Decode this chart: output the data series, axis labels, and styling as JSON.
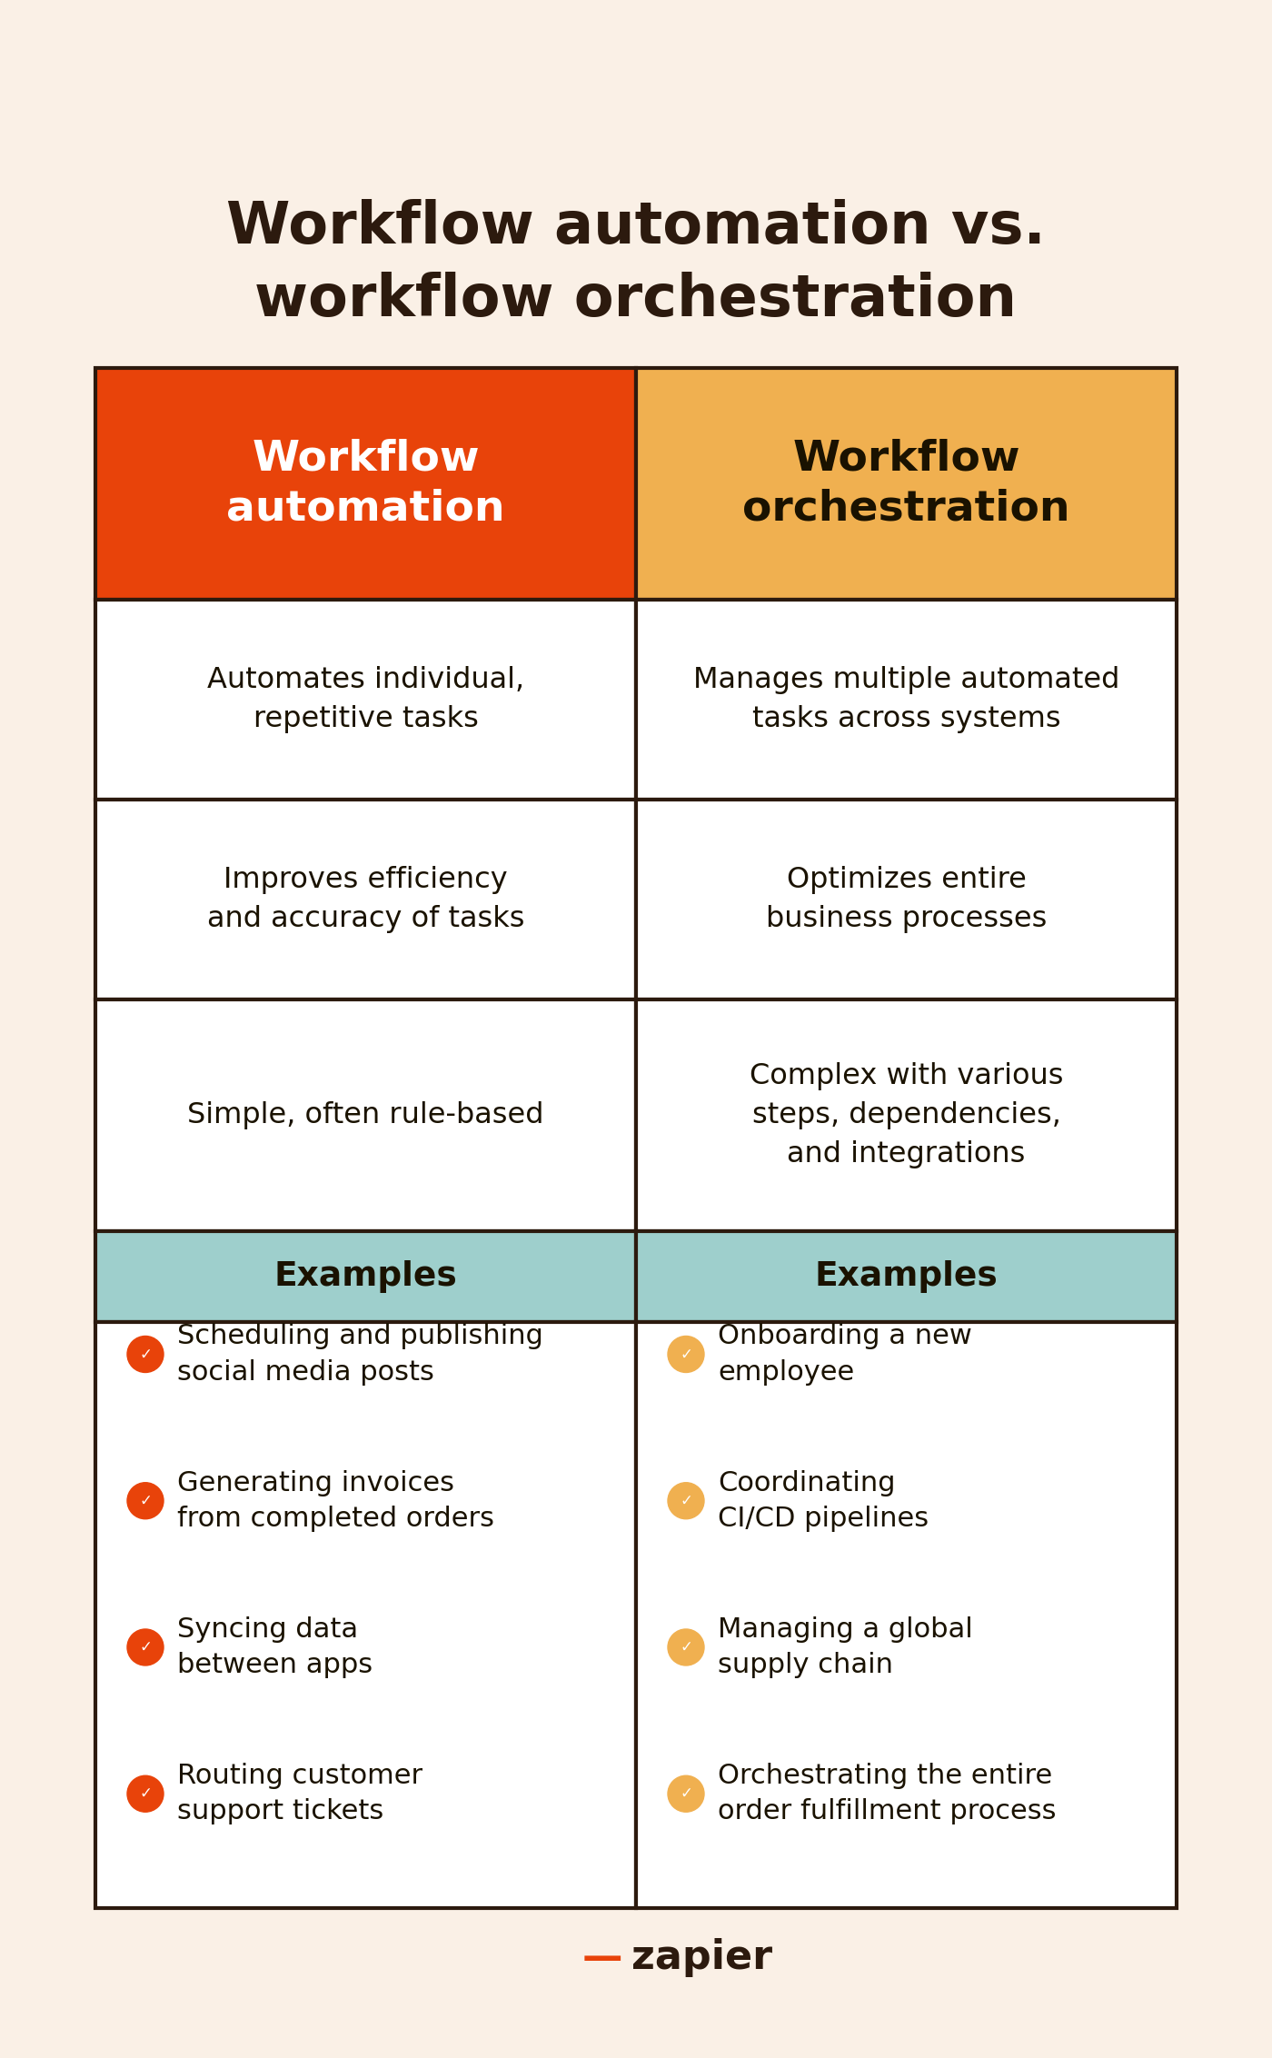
{
  "title": "Workflow automation vs.\nworkflow orchestration",
  "bg_color": "#faf0e6",
  "table_border_color": "#2c1a0e",
  "col1_header": "Workflow\nautomation",
  "col2_header": "Workflow\norchestration",
  "col1_header_bg": "#e8430a",
  "col2_header_bg": "#f0b050",
  "col1_header_text_color": "#ffffff",
  "col2_header_text_color": "#1a1200",
  "row_bg": "#ffffff",
  "examples_header_bg": "#9ecfcc",
  "examples_text_color": "#1a1200",
  "rows": [
    [
      "Automates individual,\nrepetitive tasks",
      "Manages multiple automated\ntasks across systems"
    ],
    [
      "Improves efficiency\nand accuracy of tasks",
      "Optimizes entire\nbusiness processes"
    ],
    [
      "Simple, often rule-based",
      "Complex with various\nsteps, dependencies,\nand integrations"
    ]
  ],
  "col1_examples": [
    "Scheduling and publishing\nsocial media posts",
    "Generating invoices\nfrom completed orders",
    "Syncing data\nbetween apps",
    "Routing customer\nsupport tickets"
  ],
  "col2_examples": [
    "Onboarding a new\nemployee",
    "Coordinating\nCI/CD pipelines",
    "Managing a global\nsupply chain",
    "Orchestrating the entire\norder fulfillment process"
  ],
  "col1_bullet_color": "#e8430a",
  "col2_bullet_color": "#f0b050",
  "title_color": "#2c1a0e",
  "body_text_color": "#1a1200",
  "zapier_text_color": "#2c1a0e",
  "zapier_dash_color": "#e8430a"
}
